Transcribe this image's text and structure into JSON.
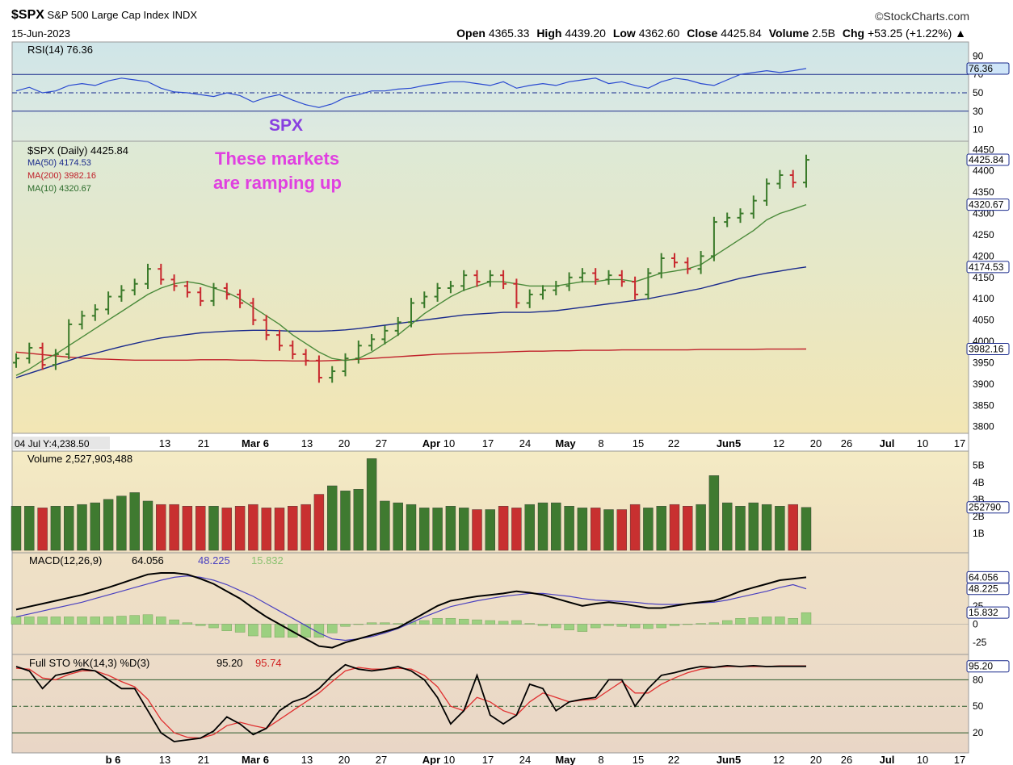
{
  "header": {
    "symbol": "$SPX",
    "name": "S&P 500 Large Cap Index",
    "exchange": "INDX",
    "date": "15-Jun-2023",
    "brand": "©StockCharts.com",
    "open_label": "Open",
    "open": "4365.33",
    "high_label": "High",
    "high": "4439.20",
    "low_label": "Low",
    "low": "4362.60",
    "close_label": "Close",
    "close": "4425.84",
    "volume_label": "Volume",
    "volume": "2.5B",
    "chg_label": "Chg",
    "chg": "+53.25 (+1.22%)",
    "chg_arrow": "▲"
  },
  "colors": {
    "up": "#3a7a2a",
    "down": "#c8282e",
    "ma50": "#1a2a8c",
    "ma200": "#c0202a",
    "ma10": "#4a8a3a",
    "annotation": "#e040e0",
    "spx_label": "#8840e0"
  },
  "annotations": {
    "spx": "SPX",
    "line1": "These markets",
    "line2": "are ramping up"
  },
  "cursor_label": "04 Jul Y:4,238.50",
  "chart_data": [
    {
      "type": "line",
      "panel": "rsi",
      "title": "RSI(14) 76.36",
      "value_label": "76.36",
      "yticks": [
        "90",
        "70",
        "50",
        "30",
        "10"
      ],
      "ylim": [
        0,
        100
      ],
      "levels": [
        70,
        50,
        30
      ],
      "values": [
        52,
        56,
        50,
        52,
        58,
        60,
        58,
        63,
        66,
        64,
        62,
        55,
        51,
        50,
        48,
        46,
        50,
        47,
        40,
        45,
        48,
        42,
        37,
        34,
        38,
        45,
        48,
        52,
        52,
        54,
        55,
        58,
        60,
        62,
        62,
        60,
        58,
        62,
        55,
        58,
        60,
        58,
        62,
        64,
        66,
        60,
        62,
        58,
        55,
        62,
        66,
        64,
        60,
        58,
        64,
        70,
        72,
        74,
        72,
        74,
        76.36
      ]
    },
    {
      "type": "bar",
      "panel": "price",
      "title": "$SPX (Daily) 4425.84",
      "ylim": [
        3790,
        4460
      ],
      "yticks": [
        "4450",
        "4400",
        "4350",
        "4300",
        "4250",
        "4200",
        "4150",
        "4100",
        "4050",
        "4000",
        "3950",
        "3900",
        "3850",
        "3800"
      ],
      "legend": [
        {
          "name": "MA(50) 4174.53"
        },
        {
          "name": "MA(200) 3982.16"
        },
        {
          "name": "MA(10) 4320.67"
        }
      ],
      "last_close_label": "4425.84",
      "ma10_label": "4320.67",
      "ma50_label": "4174.53",
      "ma200_label": "3982.16",
      "xticks": [
        "b 6",
        "13",
        "21",
        "Mar 6",
        "13",
        "20",
        "27",
        "Apr",
        "10",
        "17",
        "24",
        "May",
        "8",
        "15",
        "22",
        "Jun5",
        "12",
        "20",
        "26",
        "Jul",
        "10",
        "17"
      ],
      "close": [
        3960,
        3985,
        3945,
        3970,
        4040,
        4060,
        4075,
        4105,
        4120,
        4135,
        4170,
        4145,
        4130,
        4115,
        4095,
        4125,
        4110,
        4090,
        4050,
        4015,
        3990,
        3970,
        3955,
        3915,
        3930,
        3960,
        3990,
        4005,
        4025,
        4045,
        4090,
        4105,
        4125,
        4130,
        4155,
        4140,
        4155,
        4135,
        4090,
        4110,
        4120,
        4130,
        4150,
        4160,
        4145,
        4155,
        4140,
        4110,
        4160,
        4195,
        4185,
        4170,
        4200,
        4280,
        4290,
        4300,
        4330,
        4370,
        4390,
        4372.59,
        4425.84
      ],
      "ma10": [
        3920,
        3935,
        3955,
        3970,
        3990,
        4010,
        4030,
        4050,
        4070,
        4090,
        4110,
        4125,
        4135,
        4140,
        4135,
        4125,
        4115,
        4100,
        4080,
        4060,
        4040,
        4015,
        3995,
        3975,
        3960,
        3955,
        3960,
        3975,
        3995,
        4015,
        4040,
        4065,
        4085,
        4105,
        4120,
        4130,
        4140,
        4140,
        4135,
        4130,
        4130,
        4130,
        4135,
        4140,
        4140,
        4145,
        4145,
        4140,
        4150,
        4160,
        4165,
        4170,
        4180,
        4200,
        4220,
        4240,
        4260,
        4285,
        4300,
        4310,
        4320.67
      ],
      "ma50": [
        3915,
        3925,
        3935,
        3945,
        3955,
        3965,
        3972,
        3980,
        3988,
        3995,
        4002,
        4008,
        4012,
        4016,
        4020,
        4022,
        4024,
        4025,
        4026,
        4026,
        4025,
        4024,
        4024,
        4024,
        4025,
        4027,
        4030,
        4034,
        4038,
        4042,
        4046,
        4050,
        4054,
        4058,
        4062,
        4064,
        4066,
        4068,
        4068,
        4068,
        4070,
        4072,
        4076,
        4080,
        4084,
        4088,
        4092,
        4096,
        4100,
        4106,
        4112,
        4118,
        4124,
        4132,
        4140,
        4148,
        4154,
        4160,
        4165,
        4170,
        4174.53
      ],
      "ma200": [
        3975,
        3972,
        3969,
        3966,
        3963,
        3961,
        3959,
        3958,
        3957,
        3956,
        3956,
        3956,
        3956,
        3956,
        3957,
        3957,
        3957,
        3956,
        3956,
        3955,
        3955,
        3954,
        3954,
        3954,
        3955,
        3956,
        3958,
        3960,
        3962,
        3964,
        3966,
        3968,
        3970,
        3971,
        3972,
        3973,
        3974,
        3975,
        3976,
        3977,
        3977,
        3978,
        3978,
        3979,
        3979,
        3979,
        3980,
        3980,
        3980,
        3980,
        3980,
        3980,
        3981,
        3981,
        3981,
        3981,
        3981,
        3982,
        3982,
        3982,
        3982.16
      ]
    },
    {
      "type": "bar",
      "panel": "volume",
      "title": "Volume 2,527,903,488",
      "value_label": "252790",
      "yticks": [
        "5B",
        "4B",
        "3B",
        "2B",
        "1B"
      ],
      "ylim": [
        0,
        5.7
      ],
      "values": [
        2.6,
        2.6,
        2.5,
        2.6,
        2.6,
        2.7,
        2.8,
        3.0,
        3.2,
        3.4,
        2.9,
        2.7,
        2.7,
        2.6,
        2.6,
        2.6,
        2.5,
        2.6,
        2.7,
        2.5,
        2.5,
        2.6,
        2.7,
        3.3,
        3.8,
        3.5,
        3.6,
        5.4,
        2.9,
        2.8,
        2.7,
        2.5,
        2.5,
        2.6,
        2.5,
        2.4,
        2.4,
        2.6,
        2.5,
        2.7,
        2.8,
        2.8,
        2.6,
        2.5,
        2.5,
        2.4,
        2.4,
        2.7,
        2.5,
        2.6,
        2.7,
        2.6,
        2.7,
        4.4,
        2.8,
        2.6,
        2.8,
        2.7,
        2.6,
        2.7,
        2.53
      ]
    },
    {
      "type": "line",
      "panel": "macd",
      "title": "MACD(12,26,9)",
      "values_text": [
        "64.056",
        "48.225",
        "15.832"
      ],
      "yticks": [
        "25",
        "0",
        "-25"
      ],
      "ylim": [
        -38,
        92
      ],
      "labels": [
        "64.056",
        "48.225",
        "15.832"
      ],
      "macd": [
        20,
        24,
        28,
        32,
        36,
        40,
        45,
        50,
        56,
        62,
        68,
        70,
        70,
        68,
        62,
        55,
        45,
        35,
        22,
        10,
        0,
        -10,
        -20,
        -30,
        -32,
        -25,
        -20,
        -15,
        -10,
        -5,
        5,
        15,
        25,
        32,
        35,
        38,
        40,
        42,
        45,
        43,
        40,
        35,
        30,
        25,
        28,
        30,
        28,
        25,
        22,
        22,
        25,
        28,
        30,
        32,
        38,
        45,
        50,
        55,
        60,
        62,
        64.056
      ],
      "signal": [
        10,
        14,
        18,
        22,
        26,
        30,
        35,
        40,
        45,
        50,
        55,
        60,
        64,
        66,
        64,
        60,
        54,
        46,
        38,
        28,
        18,
        8,
        -2,
        -12,
        -20,
        -22,
        -20,
        -17,
        -12,
        -6,
        2,
        10,
        17,
        24,
        28,
        32,
        35,
        38,
        40,
        42,
        42,
        40,
        38,
        35,
        33,
        32,
        31,
        30,
        28,
        27,
        27,
        28,
        29,
        30,
        33,
        37,
        41,
        45,
        50,
        54,
        48.225
      ],
      "hist": [
        10,
        10,
        10,
        10,
        10,
        10,
        10,
        10,
        11,
        12,
        13,
        10,
        6,
        2,
        -2,
        -5,
        -9,
        -11,
        -16,
        -18,
        -18,
        -18,
        -18,
        -18,
        -12,
        -3,
        0,
        2,
        2,
        1,
        3,
        5,
        8,
        8,
        7,
        6,
        5,
        4,
        5,
        1,
        -2,
        -5,
        -8,
        -10,
        -5,
        -2,
        -3,
        -5,
        -6,
        -5,
        -2,
        0,
        1,
        2,
        5,
        8,
        9,
        10,
        10,
        8,
        15.832
      ]
    },
    {
      "type": "line",
      "panel": "sto",
      "title": "Full STO %K(14,3) %D(3)",
      "k_value": "95.20",
      "d_value": "95.74",
      "yticks": [
        "80",
        "50",
        "20"
      ],
      "ylim": [
        0,
        105
      ],
      "levels": [
        80,
        50,
        20
      ],
      "k": [
        95,
        90,
        70,
        85,
        88,
        92,
        90,
        80,
        70,
        70,
        45,
        20,
        10,
        12,
        14,
        22,
        38,
        30,
        18,
        25,
        45,
        55,
        60,
        70,
        85,
        97,
        92,
        90,
        92,
        95,
        90,
        80,
        60,
        30,
        45,
        85,
        40,
        30,
        40,
        75,
        70,
        45,
        55,
        58,
        60,
        80,
        80,
        50,
        70,
        85,
        88,
        92,
        95,
        94,
        96,
        95,
        96,
        95,
        95.2,
        95.2,
        95.2
      ],
      "d": [
        93,
        92,
        82,
        80,
        86,
        90,
        90,
        85,
        78,
        72,
        58,
        35,
        20,
        15,
        14,
        18,
        28,
        32,
        28,
        25,
        35,
        45,
        55,
        65,
        78,
        90,
        94,
        92,
        92,
        93,
        92,
        85,
        72,
        50,
        45,
        60,
        55,
        45,
        40,
        55,
        65,
        60,
        55,
        57,
        58,
        68,
        78,
        65,
        65,
        75,
        82,
        88,
        92,
        94,
        95,
        95,
        95,
        95,
        95.74,
        95.74,
        95.74
      ]
    }
  ]
}
